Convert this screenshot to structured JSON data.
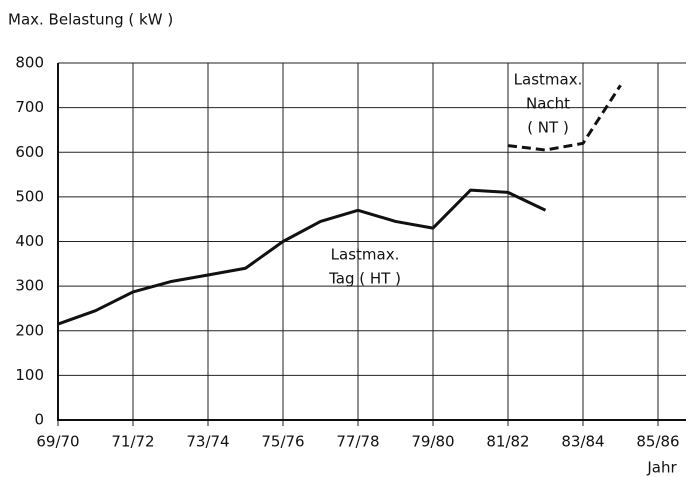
{
  "chart_data": {
    "type": "line",
    "y_label": "Max. Belastung ( kW )",
    "x_label": "Jahr",
    "categories": [
      "69/70",
      null,
      "71/72",
      null,
      "73/74",
      null,
      "75/76",
      null,
      "77/78",
      null,
      "79/80",
      null,
      "81/82",
      null,
      "83/84",
      null,
      "85/86"
    ],
    "series": [
      {
        "name": "Lastmax. Tag ( HT )",
        "color": "#111111",
        "style": "solid",
        "values": [
          215,
          245,
          287,
          310,
          325,
          340,
          400,
          445,
          470,
          445,
          430,
          515,
          510,
          470,
          null,
          null,
          null
        ]
      },
      {
        "name": "Lastmax. Nacht ( NT )",
        "color": "#111111",
        "style": "dashed",
        "values": [
          null,
          null,
          null,
          null,
          null,
          null,
          null,
          null,
          null,
          null,
          null,
          null,
          615,
          605,
          620,
          750,
          null
        ]
      }
    ],
    "annotations": [
      {
        "lines": [
          "Lastmax.",
          "Tag ( HT )"
        ]
      },
      {
        "lines": [
          "Lastmax.",
          "Nacht",
          "( NT )"
        ]
      }
    ],
    "ylim": [
      0,
      800
    ],
    "yticks": [
      0,
      100,
      200,
      300,
      400,
      500,
      600,
      700,
      800
    ],
    "grid": true
  }
}
